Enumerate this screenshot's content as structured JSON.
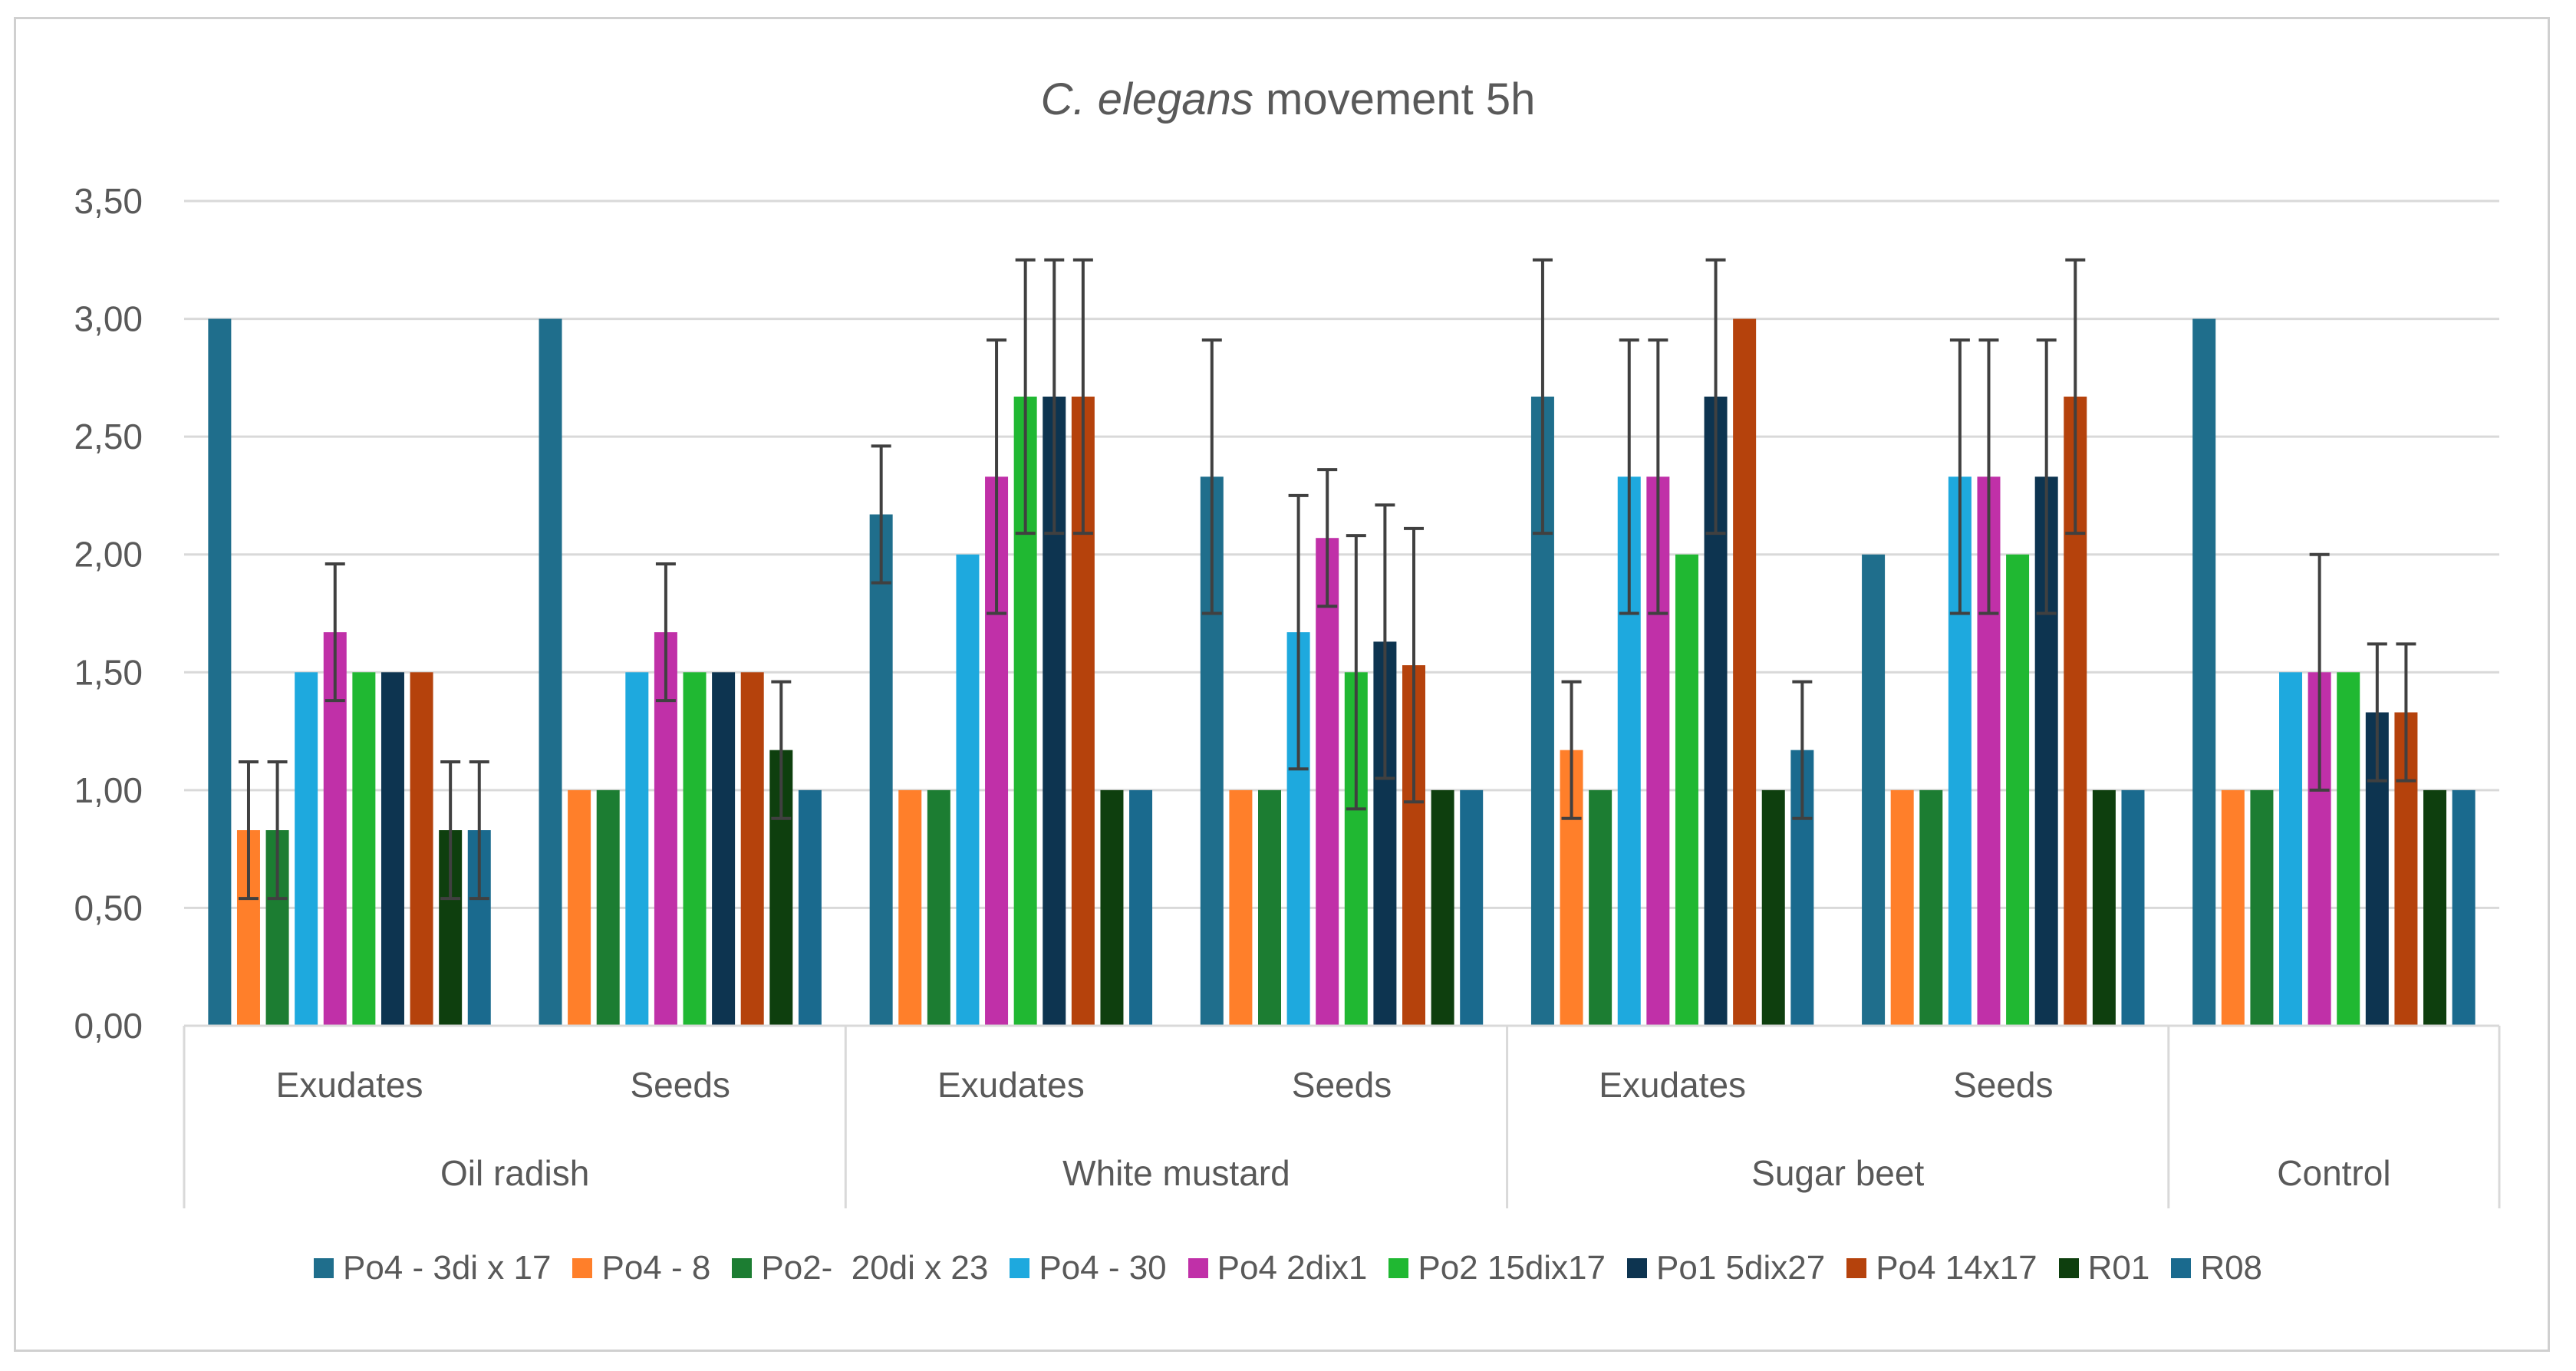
{
  "chart_data": {
    "type": "bar",
    "title_italic": "C. elegans",
    "title_rest": " movement 5h",
    "ylim": [
      0,
      3.5
    ],
    "yticks": [
      "0,00",
      "0,50",
      "1,00",
      "1,50",
      "2,00",
      "2,50",
      "3,00",
      "3,50"
    ],
    "ytick_values": [
      0,
      0.5,
      1,
      1.5,
      2,
      2.5,
      3,
      3.5
    ],
    "grid": true,
    "legend_position": "bottom",
    "groups": [
      {
        "name": "Oil radish",
        "subgroups": [
          "Exudates",
          "Seeds"
        ]
      },
      {
        "name": "White mustard",
        "subgroups": [
          "Exudates",
          "Seeds"
        ]
      },
      {
        "name": "Sugar beet",
        "subgroups": [
          "Exudates",
          "Seeds"
        ]
      },
      {
        "name": "Control",
        "subgroups": [
          ""
        ]
      }
    ],
    "categories": [
      "Oil radish - Exudates",
      "Oil radish - Seeds",
      "White mustard - Exudates",
      "White mustard - Seeds",
      "Sugar beet - Exudates",
      "Sugar beet - Seeds",
      "Control"
    ],
    "series": [
      {
        "name": "Po4 - 3di x 17",
        "color": "#1f6e8c",
        "values": [
          3.0,
          3.0,
          2.17,
          2.33,
          2.67,
          2.0,
          3.0
        ],
        "errors": [
          0,
          0,
          0.29,
          0.58,
          0.58,
          0,
          0
        ]
      },
      {
        "name": "Po4 - 8",
        "color": "#ff7f2a",
        "values": [
          0.83,
          1.0,
          1.0,
          1.0,
          1.17,
          1.0,
          1.0
        ],
        "errors": [
          0.29,
          0,
          0,
          0,
          0.29,
          0,
          0
        ]
      },
      {
        "name": "Po2-  20di x 23",
        "color": "#1c7d32",
        "values": [
          0.83,
          1.0,
          1.0,
          1.0,
          1.0,
          1.0,
          1.0
        ],
        "errors": [
          0.29,
          0,
          0,
          0,
          0,
          0,
          0
        ]
      },
      {
        "name": "Po4 - 30",
        "color": "#1ea9de",
        "values": [
          1.5,
          1.5,
          2.0,
          1.67,
          2.33,
          2.33,
          1.5
        ],
        "errors": [
          0,
          0,
          0,
          0.58,
          0.58,
          0.58,
          0
        ]
      },
      {
        "name": "Po4 2dix1",
        "color": "#c030a8",
        "values": [
          1.67,
          1.67,
          2.33,
          2.07,
          2.33,
          2.33,
          1.5
        ],
        "errors": [
          0.29,
          0.29,
          0.58,
          0.29,
          0.58,
          0.58,
          0.5
        ]
      },
      {
        "name": "Po2 15dix17",
        "color": "#20b832",
        "values": [
          1.5,
          1.5,
          2.67,
          1.5,
          2.0,
          2.0,
          1.5
        ],
        "errors": [
          0,
          0,
          0.58,
          0.58,
          0,
          0,
          0
        ]
      },
      {
        "name": "Po1 5dix27",
        "color": "#0d3450",
        "values": [
          1.5,
          1.5,
          2.67,
          1.63,
          2.67,
          2.33,
          1.33
        ],
        "errors": [
          0,
          0,
          0.58,
          0.58,
          0.58,
          0.58,
          0.29
        ]
      },
      {
        "name": "Po4 14x17",
        "color": "#b5420c",
        "values": [
          1.5,
          1.5,
          2.67,
          1.53,
          3.0,
          2.67,
          1.33
        ],
        "errors": [
          0,
          0,
          0.58,
          0.58,
          0,
          0.58,
          0.29
        ]
      },
      {
        "name": "R01",
        "color": "#0e3f0e",
        "values": [
          0.83,
          1.17,
          1.0,
          1.0,
          1.0,
          1.0,
          1.0
        ],
        "errors": [
          0.29,
          0.29,
          0,
          0,
          0,
          0,
          0
        ]
      },
      {
        "name": "R08",
        "color": "#1a6a8e",
        "values": [
          0.83,
          1.0,
          1.0,
          1.0,
          1.17,
          1.0,
          1.0
        ],
        "errors": [
          0.29,
          0,
          0,
          0,
          0.29,
          0,
          0
        ]
      }
    ]
  }
}
